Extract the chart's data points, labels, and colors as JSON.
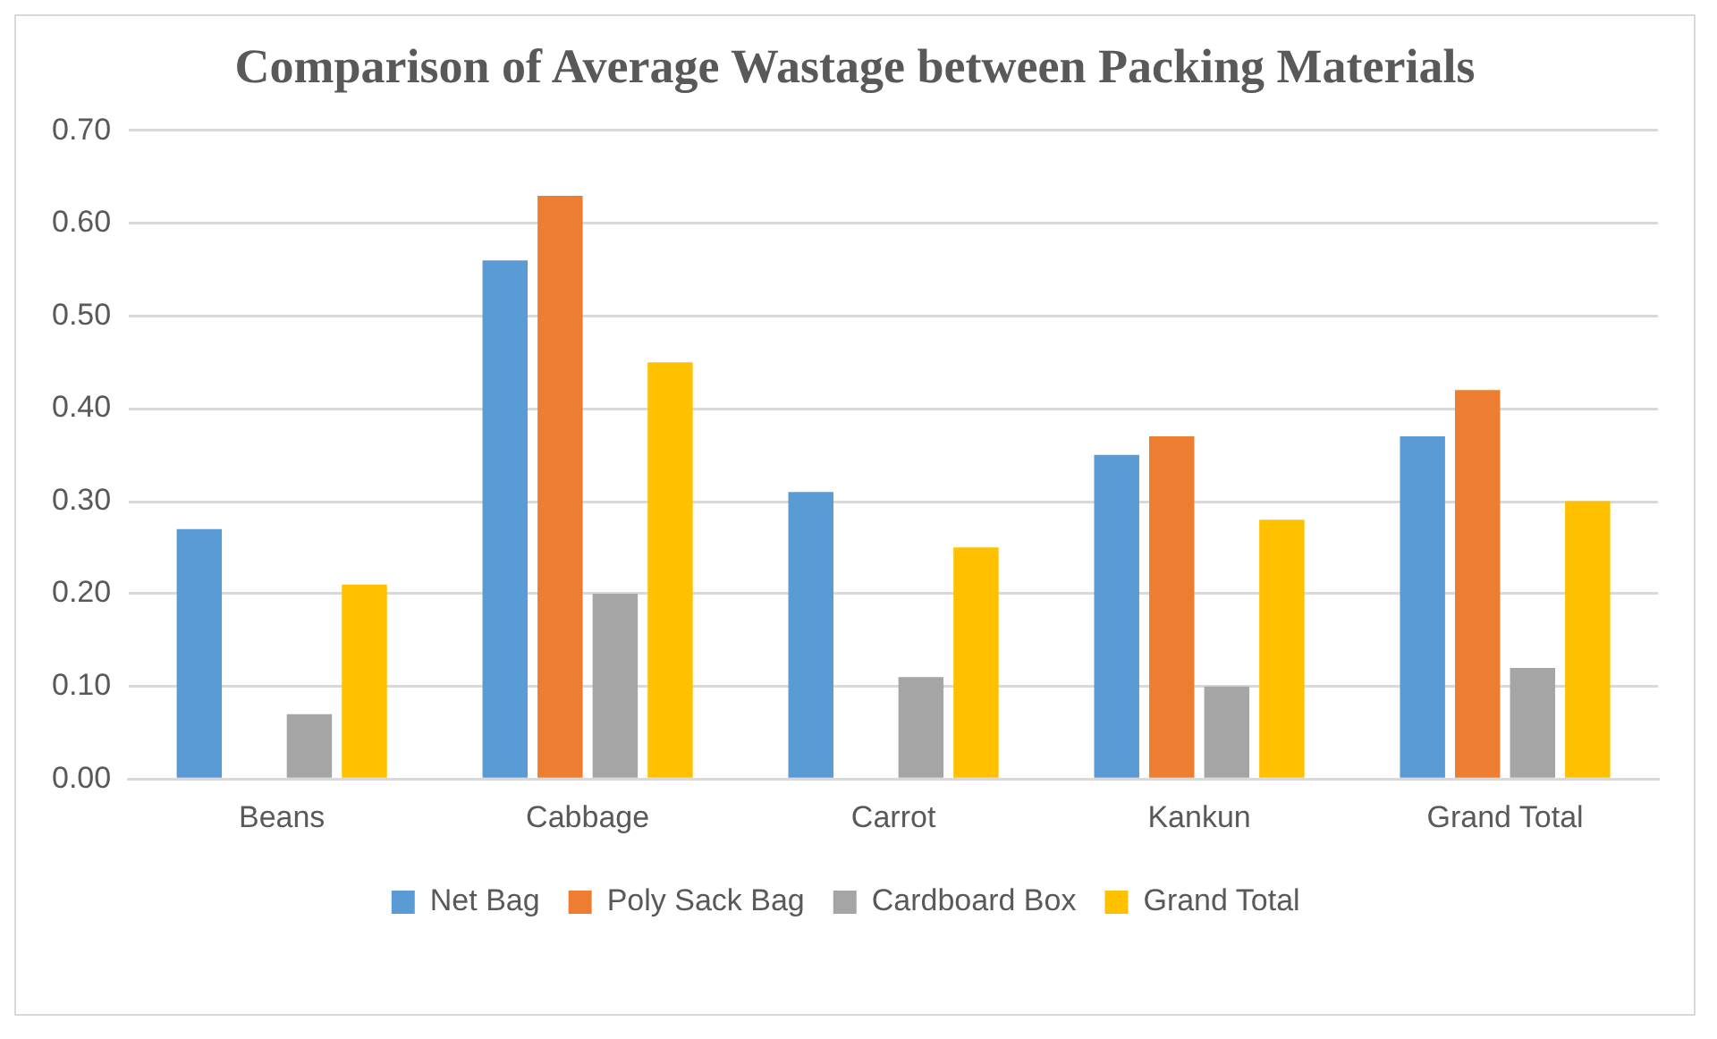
{
  "chart_data": {
    "type": "bar",
    "title": "Comparison of Average Wastage between Packing Materials",
    "categories": [
      "Beans",
      "Cabbage",
      "Carrot",
      "Kankun",
      "Grand Total"
    ],
    "series": [
      {
        "name": "Net Bag",
        "color": "#5b9bd5",
        "values": [
          0.27,
          0.56,
          0.31,
          0.35,
          0.37
        ]
      },
      {
        "name": "Poly Sack Bag",
        "color": "#ed7d31",
        "values": [
          null,
          0.63,
          null,
          0.37,
          0.42
        ]
      },
      {
        "name": "Cardboard Box",
        "color": "#a5a5a5",
        "values": [
          0.07,
          0.2,
          0.11,
          0.1,
          0.12
        ]
      },
      {
        "name": "Grand Total",
        "color": "#ffc000",
        "values": [
          0.21,
          0.45,
          0.25,
          0.28,
          0.3
        ]
      }
    ],
    "ylim": [
      0,
      0.7
    ],
    "yticks": [
      {
        "value": 0,
        "label": "0.00"
      },
      {
        "value": 0.1,
        "label": "0.10"
      },
      {
        "value": 0.2,
        "label": "0.20"
      },
      {
        "value": 0.3,
        "label": "0.30"
      },
      {
        "value": 0.4,
        "label": "0.40"
      },
      {
        "value": 0.5,
        "label": "0.50"
      },
      {
        "value": 0.6,
        "label": "0.60"
      },
      {
        "value": 0.7,
        "label": "0.70"
      }
    ],
    "grid": "y",
    "legend": "bottom"
  }
}
